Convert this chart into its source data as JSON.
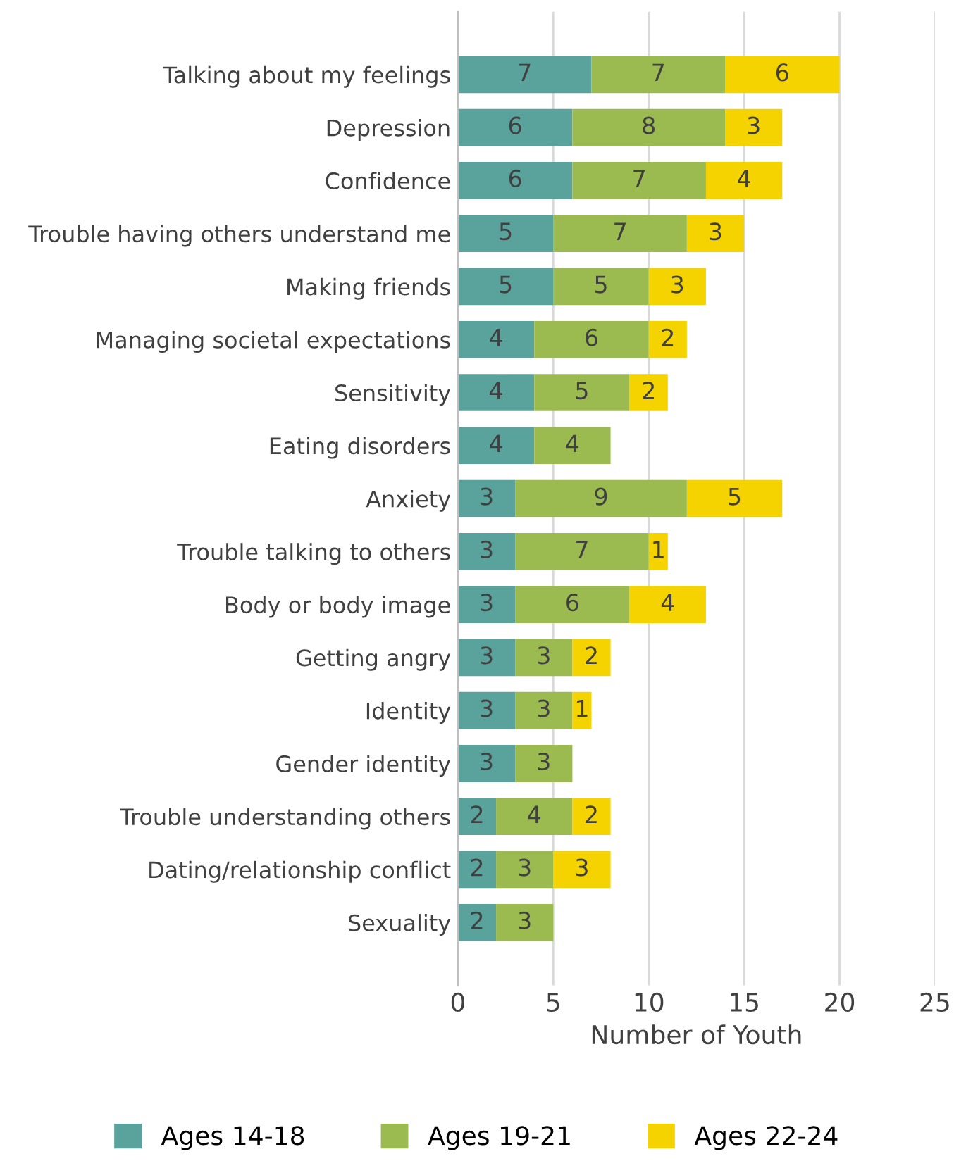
{
  "chart_data": {
    "type": "bar",
    "orientation": "horizontal",
    "stacked": true,
    "xlabel": "Number of Youth",
    "categories": [
      "Talking about my feelings",
      "Depression",
      "Confidence",
      "Trouble having others understand me",
      "Making friends",
      "Managing societal expectations",
      "Sensitivity",
      "Eating disorders",
      "Anxiety",
      "Trouble talking to others",
      "Body or body image",
      "Getting angry",
      "Identity",
      "Gender identity",
      "Trouble understanding others",
      "Dating/relationship conflict",
      "Sexuality"
    ],
    "series": [
      {
        "name": "Ages 14-18",
        "color": "#5aa29c",
        "values": [
          7,
          6,
          6,
          5,
          5,
          4,
          4,
          4,
          3,
          3,
          3,
          3,
          3,
          3,
          2,
          2,
          2
        ]
      },
      {
        "name": "Ages 19-21",
        "color": "#9bbb50",
        "values": [
          7,
          8,
          7,
          7,
          5,
          6,
          5,
          4,
          9,
          7,
          6,
          3,
          3,
          3,
          4,
          3,
          3
        ]
      },
      {
        "name": "Ages 22-24",
        "color": "#f5d300",
        "values": [
          6,
          3,
          4,
          3,
          3,
          2,
          2,
          null,
          5,
          1,
          4,
          2,
          1,
          null,
          2,
          3,
          null
        ]
      }
    ],
    "xlim": [
      0,
      25
    ],
    "xticks": [
      0,
      5,
      10,
      15,
      20,
      25
    ],
    "grid": "x",
    "legend": "bottom",
    "data_labels": true
  }
}
